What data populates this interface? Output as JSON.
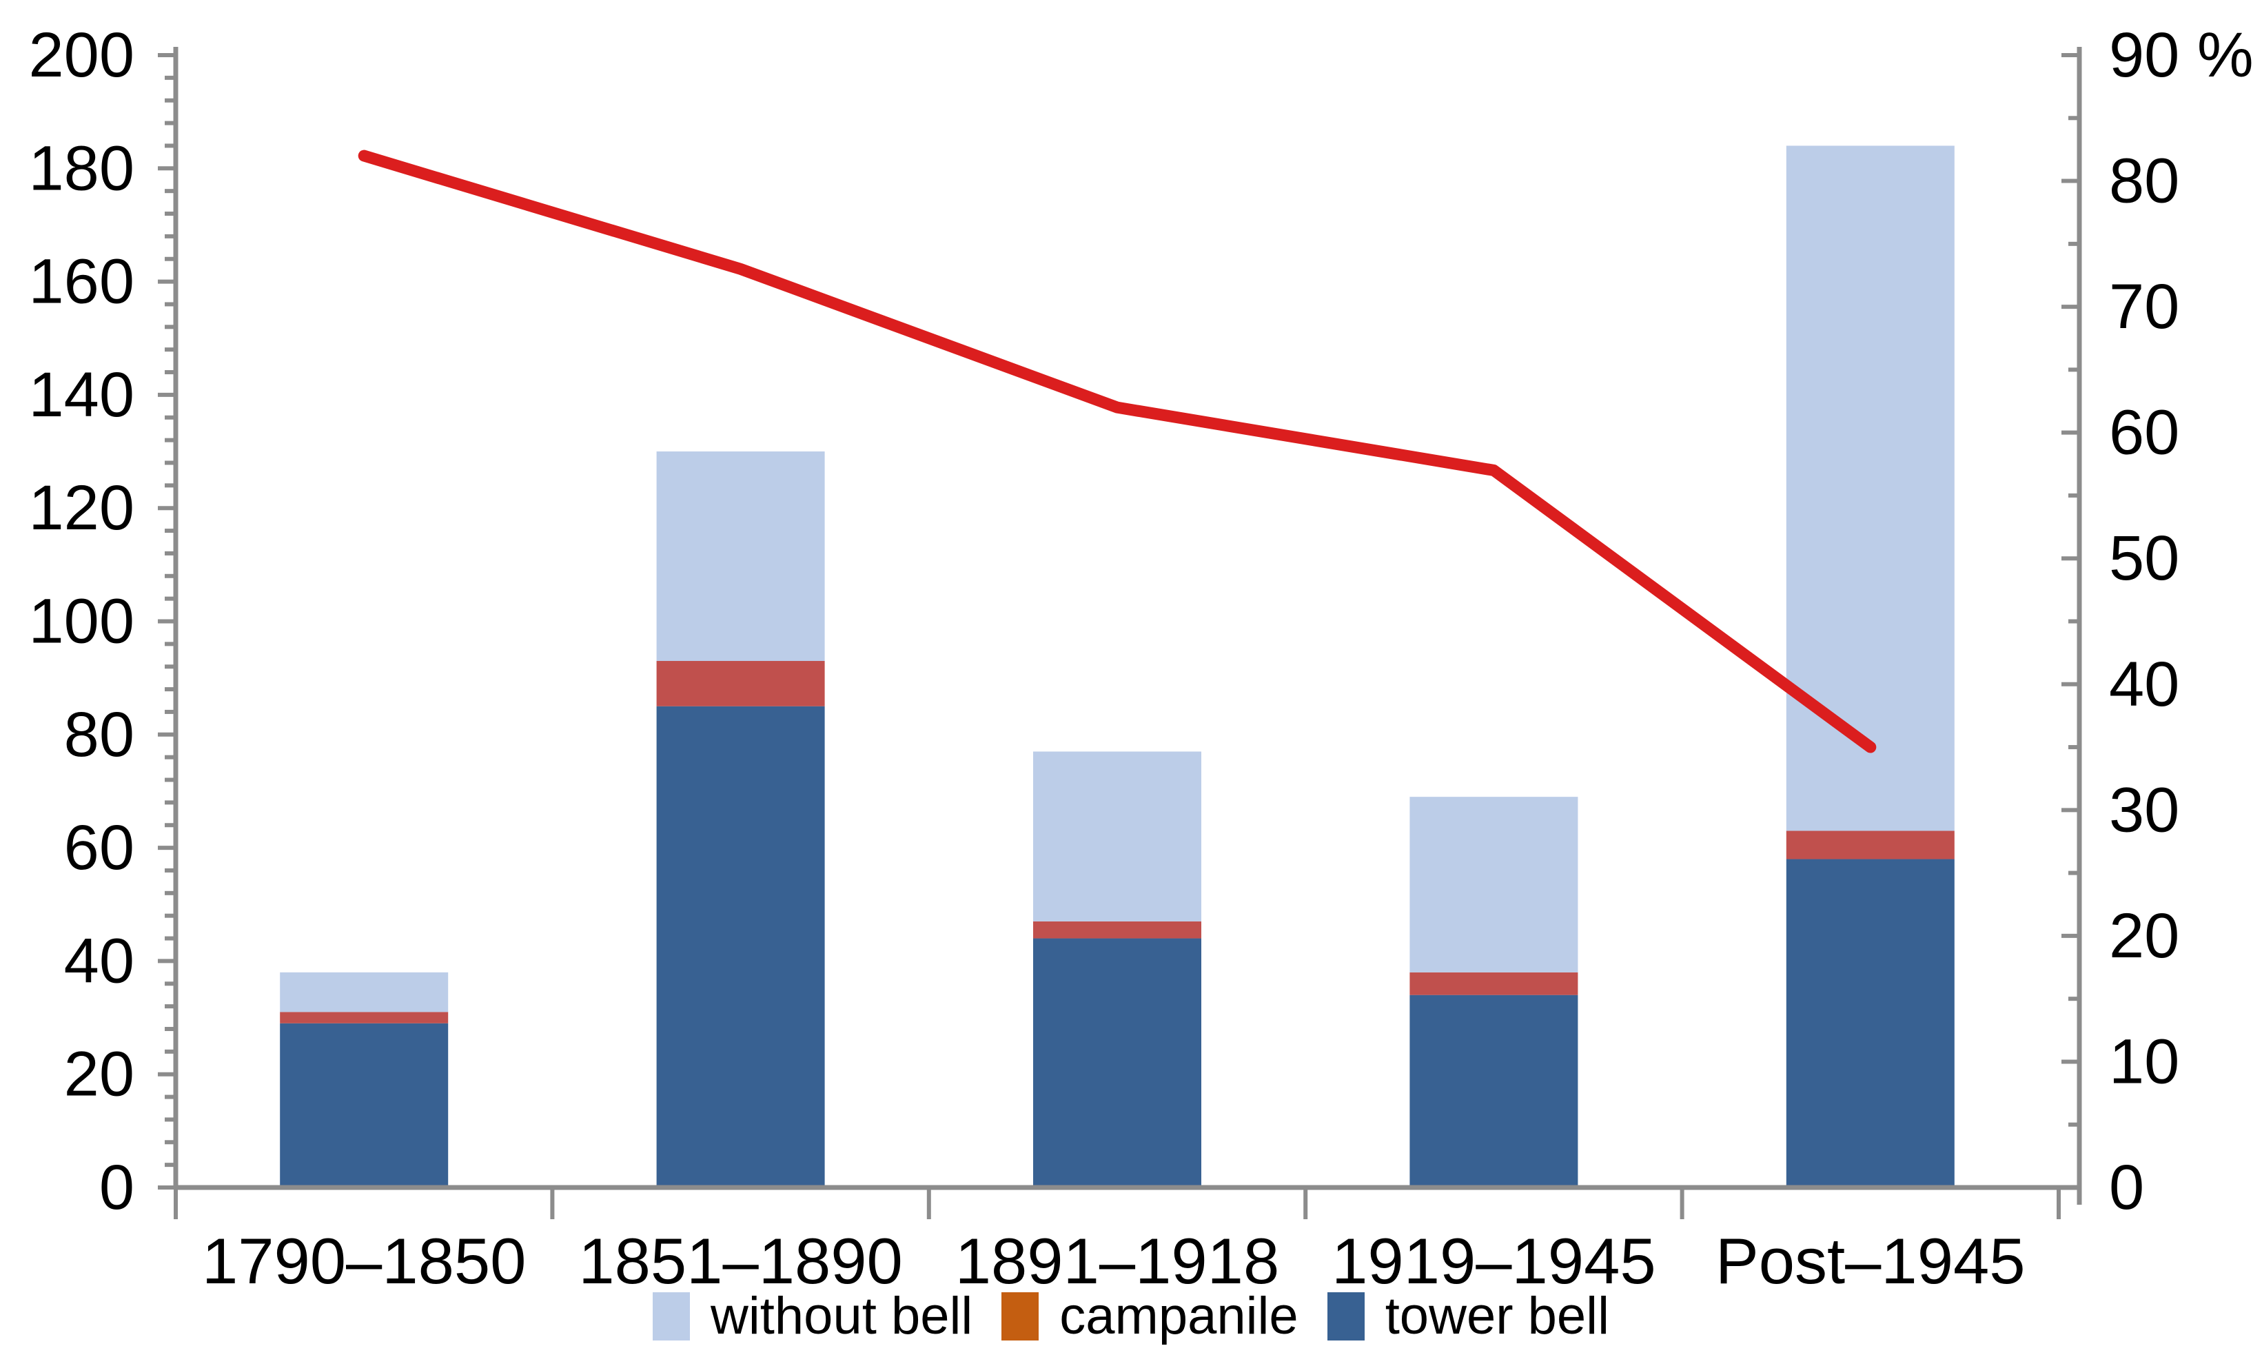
{
  "chart_data": {
    "type": "bar",
    "subtype": "stacked-columns-with-percentage-line",
    "categories": [
      "1790–1850",
      "1851–1890",
      "1891–1918",
      "1919–1945",
      "Post–1945"
    ],
    "stacked": true,
    "bar_series": [
      {
        "name": "tower bell",
        "color": "#386192",
        "values": [
          29,
          85,
          44,
          34,
          58
        ]
      },
      {
        "name": "campanile",
        "color": "#c0504d",
        "legend_color": "#c45e11",
        "values": [
          2,
          8,
          3,
          4,
          5
        ]
      },
      {
        "name": "without bell",
        "color": "#bccde8",
        "values": [
          7,
          37,
          30,
          31,
          121
        ]
      }
    ],
    "stack_totals": [
      38,
      130,
      77,
      69,
      184
    ],
    "line_series": {
      "axis": "right",
      "unit": "%",
      "color": "#db1e1e",
      "values": [
        82,
        73,
        62,
        57,
        35
      ]
    },
    "left_axis": {
      "min": 0,
      "max": 200,
      "major_step": 20,
      "minor_step": 4,
      "labels": [
        0,
        20,
        40,
        60,
        80,
        100,
        120,
        140,
        160,
        180,
        200
      ]
    },
    "right_axis": {
      "min": 0,
      "max": 90,
      "major_step": 10,
      "minor_step": 5,
      "top_label": "90 %",
      "labels": [
        0,
        10,
        20,
        30,
        40,
        50,
        60,
        70,
        80,
        90
      ]
    },
    "grid": false,
    "legend_position": "bottom",
    "axis_color": "#8c8c8c"
  },
  "legend": {
    "items": [
      {
        "label": "without bell",
        "color": "#bccde8"
      },
      {
        "label": "campanile",
        "color": "#c45e11"
      },
      {
        "label": "tower bell",
        "color": "#386192"
      }
    ]
  }
}
